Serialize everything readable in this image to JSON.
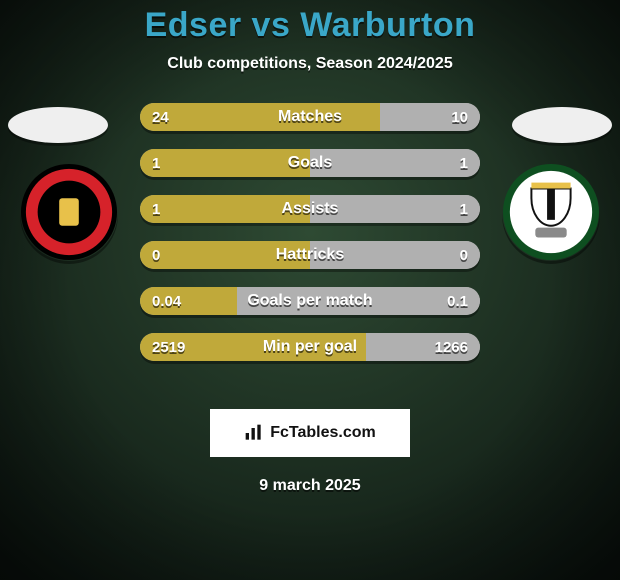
{
  "background": {
    "gradient_from": "#2e4a33",
    "gradient_to": "#0c1510",
    "vignette_color": "#000000",
    "vignette_opacity": 0.55
  },
  "title": {
    "text": "Edser vs Warburton",
    "color": "#3aa7c8",
    "fontsize": 34
  },
  "subtitle": {
    "text": "Club competitions, Season 2024/2025",
    "fontsize": 16
  },
  "date": {
    "text": "9 march 2025",
    "fontsize": 16
  },
  "bar_style": {
    "left_color": "#c0a93a",
    "right_color": "#b0b0b0",
    "track_color": "#b0b0b0",
    "height": 28,
    "gap": 18,
    "radius": 14,
    "label_fontsize": 16,
    "value_fontsize": 15
  },
  "crest_left": {
    "outer": "#000000",
    "ring": "#d6222a",
    "inner": "#000000",
    "accent": "#e8c14a"
  },
  "crest_right": {
    "outer": "#0e4f20",
    "field": "#ffffff",
    "stripe": "#111111",
    "accent": "#e8c14a",
    "base": "#8a8a8a"
  },
  "bars": [
    {
      "label": "Matches",
      "left_text": "24",
      "right_text": "10",
      "left_val": 24,
      "right_val": 10,
      "scale": "sum"
    },
    {
      "label": "Goals",
      "left_text": "1",
      "right_text": "1",
      "left_val": 1,
      "right_val": 1,
      "scale": "sum"
    },
    {
      "label": "Assists",
      "left_text": "1",
      "right_text": "1",
      "left_val": 1,
      "right_val": 1,
      "scale": "sum"
    },
    {
      "label": "Hattricks",
      "left_text": "0",
      "right_text": "0",
      "left_val": 0,
      "right_val": 0,
      "scale": "sum"
    },
    {
      "label": "Goals per match",
      "left_text": "0.04",
      "right_text": "0.1",
      "left_val": 0.04,
      "right_val": 0.1,
      "scale": "sum"
    },
    {
      "label": "Min per goal",
      "left_text": "2519",
      "right_text": "1266",
      "left_val": 2519,
      "right_val": 1266,
      "scale": "sum"
    }
  ],
  "attribution": {
    "text": "FcTables.com",
    "bg": "#ffffff",
    "text_color": "#111111",
    "icon_color": "#111111"
  }
}
